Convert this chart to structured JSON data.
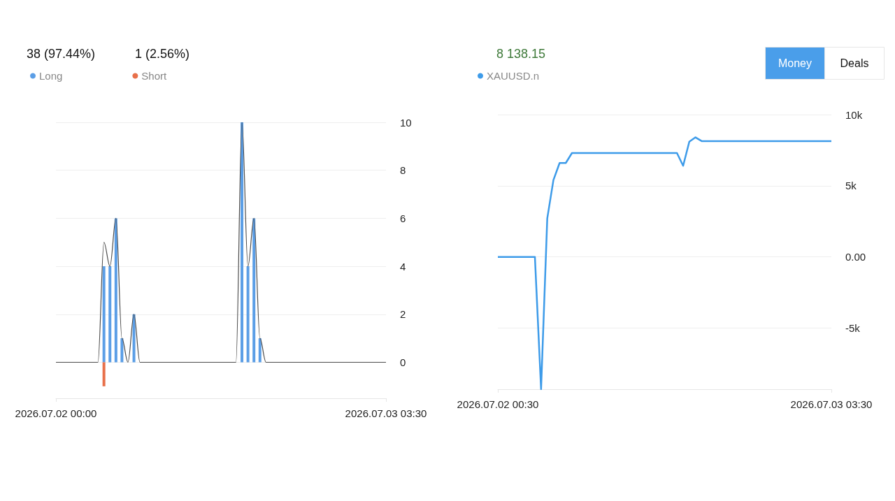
{
  "chart_data": [
    {
      "type": "bar",
      "annotations": [
        "38 (97.44%)",
        "1 (2.56%)"
      ],
      "xlim": [
        "2026-07-02T00:00",
        "2026-07-03T03:30"
      ],
      "xticks": [
        {
          "value": "2026-07-02T00:00",
          "label": "2026.07.02 00:00"
        },
        {
          "value": "2026-07-03T03:30",
          "label": "2026.07.03 03:30"
        }
      ],
      "ylim": [
        -1.5,
        10
      ],
      "yticks": [
        0,
        2,
        4,
        6,
        8,
        10
      ],
      "grid": "y",
      "legend": "top left",
      "series": [
        {
          "name": "Long",
          "color": "#5b9ee6",
          "x": [
            "2026-07-02T04:00",
            "2026-07-02T04:30",
            "2026-07-02T05:00",
            "2026-07-02T05:30",
            "2026-07-02T06:30",
            "2026-07-02T15:30",
            "2026-07-02T16:00",
            "2026-07-02T16:30",
            "2026-07-02T17:00"
          ],
          "values": [
            4,
            4,
            6,
            1,
            2,
            10,
            4,
            6,
            1
          ]
        },
        {
          "name": "Short",
          "color": "#e8704a",
          "x": [
            "2026-07-02T04:00"
          ],
          "values": [
            -1
          ]
        },
        {
          "type": "line",
          "color": "#4a4a4a",
          "x": [
            "2026-07-02T00:00",
            "2026-07-02T03:30",
            "2026-07-02T04:00",
            "2026-07-02T04:30",
            "2026-07-02T05:00",
            "2026-07-02T05:30",
            "2026-07-02T06:00",
            "2026-07-02T06:30",
            "2026-07-02T07:00",
            "2026-07-02T15:00",
            "2026-07-02T15:30",
            "2026-07-02T16:00",
            "2026-07-02T16:30",
            "2026-07-02T17:00",
            "2026-07-02T17:30",
            "2026-07-03T03:30"
          ],
          "values": [
            0,
            0,
            5,
            4,
            6,
            1,
            0,
            2,
            0,
            0,
            10,
            4,
            6,
            1,
            0,
            0
          ]
        }
      ]
    },
    {
      "type": "line",
      "annotations": [
        "8 138.15",
        "Money",
        "Deals"
      ],
      "xlim": [
        "2026-07-02T00:30",
        "2026-07-03T03:30"
      ],
      "xticks": [
        {
          "value": "2026-07-02T00:30",
          "label": "2026.07.02 00:30"
        },
        {
          "value": "2026-07-03T03:30",
          "label": "2026.07.03 03:30"
        }
      ],
      "ylim": [
        -9300,
        10000
      ],
      "yticks": [
        {
          "value": -5000,
          "label": "-5k"
        },
        {
          "value": 0,
          "label": "0.00"
        },
        {
          "value": 5000,
          "label": "5k"
        },
        {
          "value": 10000,
          "label": "10k"
        }
      ],
      "grid": "y",
      "legend": "top left",
      "series": [
        {
          "name": "XAUUSD.n",
          "color": "#3d9be9",
          "x": [
            "2026-07-02T00:30",
            "2026-07-02T03:30",
            "2026-07-02T04:00",
            "2026-07-02T04:30",
            "2026-07-02T05:00",
            "2026-07-02T05:30",
            "2026-07-02T06:00",
            "2026-07-02T06:30",
            "2026-07-02T15:00",
            "2026-07-02T15:30",
            "2026-07-02T16:00",
            "2026-07-02T16:30",
            "2026-07-02T17:00",
            "2026-07-03T03:30"
          ],
          "values": [
            0,
            0,
            -9300,
            2700,
            5400,
            6600,
            6600,
            7300,
            7300,
            6400,
            8100,
            8400,
            8138.15,
            8138.15
          ]
        }
      ]
    }
  ]
}
